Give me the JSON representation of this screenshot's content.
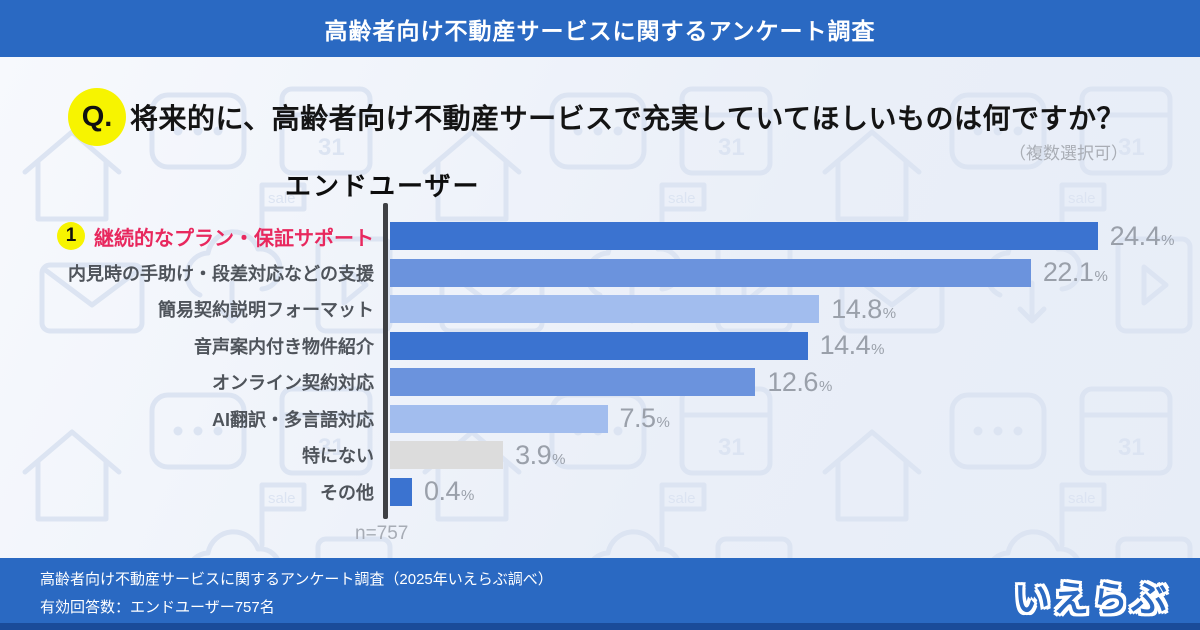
{
  "header": {
    "title": "高齢者向け不動産サービスに関するアンケート調査"
  },
  "question": {
    "badge": "Q.",
    "text": "将来的に、高齢者向け不動産サービスで充実していてほしいものは何ですか？",
    "note": "（複数選択可）"
  },
  "chart_data": {
    "type": "bar",
    "orientation": "horizontal",
    "title": "エンドユーザー",
    "unit": "%",
    "categories": [
      "継続的なプラン・保証サポート",
      "内見時の手助け・段差対応などの支援",
      "簡易契約説明フォーマット",
      "音声案内付き物件紹介",
      "オンライン契約対応",
      "AI翻訳・多言語対応",
      "特にない",
      "その他"
    ],
    "values": [
      24.4,
      22.1,
      14.8,
      14.4,
      12.6,
      7.5,
      3.9,
      0.4
    ],
    "bar_colors": [
      "#3B73D0",
      "#6B93DD",
      "#A2BDEE",
      "#3B73D0",
      "#6B93DD",
      "#A2BDEE",
      "#DCDCDC",
      "#3B73D0"
    ],
    "highlight": {
      "index": 0,
      "rank_badge": "1",
      "label_color": "#E8285E"
    },
    "sample_note": "n=757",
    "xlim": [
      0,
      25
    ],
    "grid": false
  },
  "footer": {
    "line1": "高齢者向け不動産サービスに関するアンケート調査（2025年いえらぶ調べ）",
    "line2": "有効回答数：エンドユーザー757名",
    "logo_text": "いえらぶ"
  },
  "background": {
    "sale_text": "sale",
    "calendar_text": "31"
  },
  "colors": {
    "header_bg": "#2A69C2",
    "footer_bg": "#2A69C2",
    "footer_strip": "#1A4B99",
    "main_bg": "#EFF3FA",
    "pattern_icon": "#DCE4F2",
    "accent_yellow": "#F7F400",
    "bar_dark": "#3B73D0",
    "bar_medium": "#6B93DD",
    "bar_light": "#A2BDEE",
    "bar_gray": "#DCDCDC",
    "value_text": "#9AA0AA",
    "category_text": "#4F545B",
    "highlight_text": "#E8285E",
    "axis_color": "#3E4044"
  }
}
